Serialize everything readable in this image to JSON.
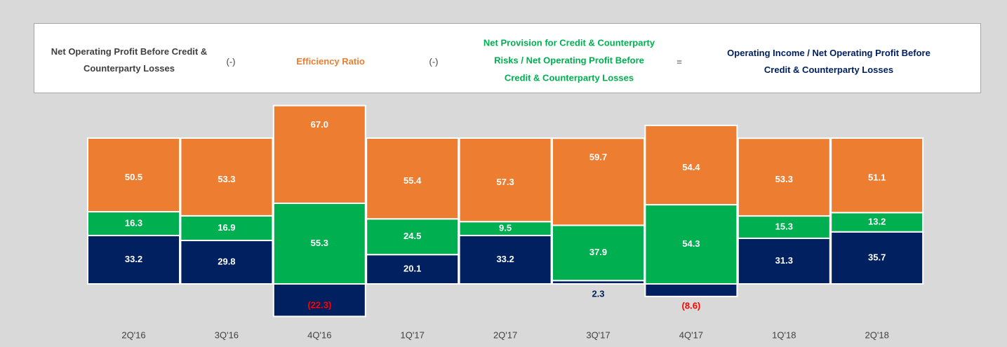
{
  "chart_data": {
    "type": "bar",
    "stacked": true,
    "total_label": "Net Operating Profit Before Credit & Counterparty Losses",
    "total_color": "#404040",
    "operators": [
      "(-)",
      "(-)",
      "="
    ],
    "categories": [
      "2Q'16",
      "3Q'16",
      "4Q'16",
      "1Q'17",
      "2Q'17",
      "3Q'17",
      "4Q'17",
      "1Q'18",
      "2Q'18"
    ],
    "series": [
      {
        "name": "Operating Income / Net Operating Profit Before Credit & Counterparty Losses",
        "color": "#002060",
        "values": [
          33.2,
          29.8,
          -22.3,
          20.1,
          33.2,
          2.3,
          -8.6,
          31.3,
          35.7
        ],
        "value_labels": [
          "33.2",
          "29.8",
          "(22.3)",
          "20.1",
          "33.2",
          "2.3",
          "(8.6)",
          "31.3",
          "35.7"
        ]
      },
      {
        "name": "Net Provision for Credit & Counterparty Risks / Net Operating Profit Before Credit & Counterparty Losses",
        "color": "#00b050",
        "values": [
          16.3,
          16.9,
          55.3,
          24.5,
          9.5,
          37.9,
          54.3,
          15.3,
          13.2
        ],
        "value_labels": [
          "16.3",
          "16.9",
          "55.3",
          "24.5",
          "9.5",
          "37.9",
          "54.3",
          "15.3",
          "13.2"
        ]
      },
      {
        "name": "Efficiency Ratio",
        "color": "#ed7d31",
        "values": [
          50.5,
          53.3,
          67.0,
          55.4,
          57.3,
          59.7,
          54.4,
          53.3,
          51.1
        ],
        "value_labels": [
          "50.5",
          "53.3",
          "67.0",
          "55.4",
          "57.3",
          "59.7",
          "54.4",
          "53.3",
          "51.1"
        ]
      }
    ],
    "negative_label_color": "#ff0000"
  }
}
